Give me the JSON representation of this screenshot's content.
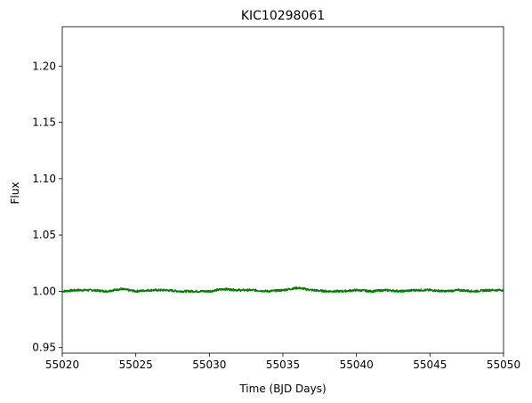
{
  "chart_data": {
    "type": "line",
    "title": "KIC10298061",
    "xlabel": "Time (BJD Days)",
    "ylabel": "Flux",
    "xlim": [
      55020,
      55050
    ],
    "ylim": [
      0.945,
      1.235
    ],
    "xticks": [
      55020,
      55025,
      55030,
      55035,
      55040,
      55045,
      55050
    ],
    "xtick_labels": [
      "55020",
      "55025",
      "55030",
      "55035",
      "55040",
      "55045",
      "55050"
    ],
    "yticks": [
      0.95,
      1.0,
      1.05,
      1.1,
      1.15,
      1.2
    ],
    "ytick_labels": [
      "0.95",
      "1.00",
      "1.05",
      "1.10",
      "1.15",
      "1.20"
    ],
    "grid": false,
    "legend": "none",
    "series": [
      {
        "color": "#008000",
        "x": [
          55020.0,
          55021.0,
          55022.0,
          55023.0,
          55024.0,
          55025.0,
          55026.0,
          55027.0,
          55028.0,
          55029.0,
          55030.0,
          55031.0,
          55032.0,
          55033.0,
          55034.0,
          55035.0,
          55036.0,
          55037.0,
          55038.0,
          55039.0,
          55040.0,
          55041.0,
          55042.0,
          55043.0,
          55044.0,
          55045.0,
          55046.0,
          55047.0,
          55048.0,
          55049.0,
          55050.0
        ],
        "y": [
          1.0,
          1.001,
          1.001,
          1.0,
          1.002,
          1.0,
          1.001,
          1.001,
          1.0,
          1.0,
          1.0,
          1.002,
          1.001,
          1.001,
          1.0,
          1.001,
          1.003,
          1.001,
          1.0,
          1.0,
          1.001,
          1.0,
          1.001,
          1.0,
          1.001,
          1.001,
          1.0,
          1.001,
          1.0,
          1.001,
          1.001
        ]
      }
    ]
  }
}
